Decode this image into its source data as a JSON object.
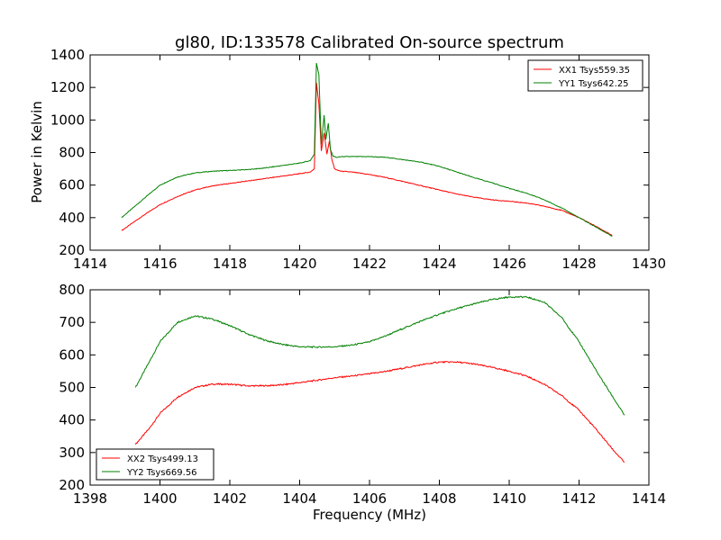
{
  "figure": {
    "title": "gl80, ID:133578 Calibrated On-source spectrum",
    "xlabel": "Frequency (MHz)",
    "ylabel": "Power in Kelvin"
  },
  "chart_data": [
    {
      "type": "line",
      "title": "gl80, ID:133578 Calibrated On-source spectrum",
      "xlabel": "",
      "ylabel": "Power in Kelvin",
      "xlim": [
        1414,
        1430
      ],
      "ylim": [
        200,
        1400
      ],
      "xticks": [
        1414,
        1416,
        1418,
        1420,
        1422,
        1424,
        1426,
        1428,
        1430
      ],
      "yticks": [
        200,
        400,
        600,
        800,
        1000,
        1200,
        1400
      ],
      "grid": false,
      "legend_position": "top-right",
      "series": [
        {
          "name": "XX1 Tsys559.35",
          "color": "#ff0000",
          "x": [
            1414.9,
            1415.5,
            1416.0,
            1416.5,
            1417.0,
            1417.5,
            1418.0,
            1418.5,
            1419.0,
            1419.5,
            1420.0,
            1420.3,
            1420.42,
            1420.48,
            1420.55,
            1420.62,
            1420.7,
            1420.78,
            1420.85,
            1420.92,
            1421.0,
            1421.1,
            1421.2,
            1421.5,
            1422.0,
            1422.5,
            1423.0,
            1423.5,
            1424.0,
            1424.5,
            1425.0,
            1425.5,
            1426.0,
            1426.5,
            1427.0,
            1427.5,
            1428.0,
            1428.5,
            1428.95
          ],
          "y": [
            320,
            410,
            480,
            530,
            570,
            595,
            610,
            625,
            640,
            655,
            670,
            680,
            700,
            1230,
            1100,
            810,
            920,
            790,
            870,
            760,
            700,
            690,
            685,
            680,
            665,
            645,
            620,
            595,
            570,
            545,
            525,
            510,
            500,
            490,
            470,
            445,
            400,
            345,
            290
          ]
        },
        {
          "name": "YY1 Tsys642.25",
          "color": "#008000",
          "x": [
            1414.9,
            1415.5,
            1416.0,
            1416.5,
            1417.0,
            1417.5,
            1418.0,
            1418.5,
            1419.0,
            1419.5,
            1420.0,
            1420.3,
            1420.42,
            1420.48,
            1420.55,
            1420.62,
            1420.7,
            1420.75,
            1420.82,
            1420.88,
            1420.95,
            1421.05,
            1421.2,
            1421.5,
            1422.0,
            1422.5,
            1423.0,
            1423.5,
            1424.0,
            1424.5,
            1425.0,
            1425.5,
            1426.0,
            1426.5,
            1427.0,
            1427.5,
            1428.0,
            1428.5,
            1428.95
          ],
          "y": [
            400,
            510,
            600,
            650,
            675,
            685,
            690,
            695,
            705,
            720,
            735,
            750,
            790,
            1350,
            1280,
            850,
            1030,
            880,
            980,
            820,
            780,
            770,
            775,
            775,
            775,
            770,
            755,
            740,
            715,
            680,
            645,
            615,
            580,
            550,
            510,
            460,
            400,
            340,
            285
          ]
        }
      ]
    },
    {
      "type": "line",
      "title": "",
      "xlabel": "Frequency (MHz)",
      "ylabel": "",
      "xlim": [
        1398,
        1414
      ],
      "ylim": [
        200,
        800
      ],
      "xticks": [
        1398,
        1400,
        1402,
        1404,
        1406,
        1408,
        1410,
        1412,
        1414
      ],
      "yticks": [
        200,
        300,
        400,
        500,
        600,
        700,
        800
      ],
      "grid": false,
      "legend_position": "bottom-left",
      "series": [
        {
          "name": "XX2 Tsys499.13",
          "color": "#ff0000",
          "x": [
            1399.3,
            1399.7,
            1400.0,
            1400.5,
            1401.0,
            1401.5,
            1402.0,
            1402.5,
            1403.0,
            1403.5,
            1404.0,
            1404.5,
            1405.0,
            1405.5,
            1406.0,
            1406.5,
            1407.0,
            1407.5,
            1408.0,
            1408.5,
            1409.0,
            1409.5,
            1410.0,
            1410.5,
            1411.0,
            1411.5,
            1412.0,
            1412.5,
            1413.0,
            1413.3
          ],
          "y": [
            325,
            375,
            420,
            470,
            500,
            510,
            510,
            505,
            505,
            508,
            515,
            522,
            530,
            535,
            542,
            550,
            560,
            570,
            578,
            578,
            572,
            562,
            550,
            535,
            510,
            475,
            430,
            370,
            305,
            270
          ]
        },
        {
          "name": "YY2 Tsys669.56",
          "color": "#008000",
          "x": [
            1399.3,
            1399.7,
            1400.0,
            1400.5,
            1401.0,
            1401.5,
            1402.0,
            1402.5,
            1403.0,
            1403.5,
            1404.0,
            1404.5,
            1405.0,
            1405.5,
            1406.0,
            1406.5,
            1407.0,
            1407.5,
            1408.0,
            1408.5,
            1409.0,
            1409.5,
            1410.0,
            1410.5,
            1411.0,
            1411.5,
            1412.0,
            1412.5,
            1413.0,
            1413.3
          ],
          "y": [
            500,
            580,
            640,
            700,
            720,
            710,
            690,
            665,
            645,
            632,
            625,
            624,
            625,
            630,
            640,
            660,
            683,
            705,
            725,
            742,
            757,
            770,
            778,
            778,
            762,
            715,
            640,
            550,
            465,
            415
          ]
        }
      ]
    }
  ]
}
